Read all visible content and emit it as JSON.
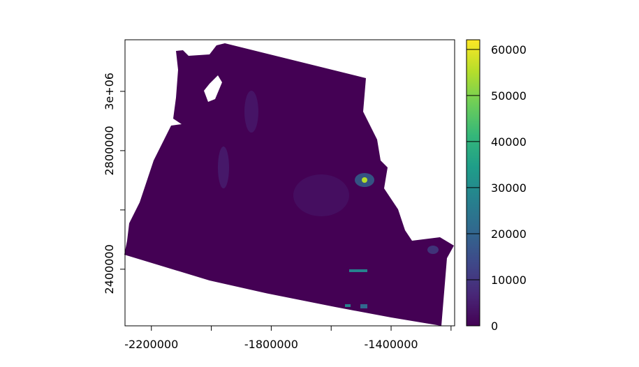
{
  "chart_data": {
    "type": "raster",
    "xlim": [
      -2288000,
      -1188000
    ],
    "xticks": [
      -2200000,
      {
        "value": -2000000,
        "label": null
      },
      -1800000,
      {
        "value": -1600000,
        "label": null
      },
      -1400000,
      {
        "value": -1200000,
        "label": null
      }
    ],
    "ylim": [
      2209000,
      3174000
    ],
    "yticks": [
      2400000,
      {
        "value": 2600000,
        "label": null
      },
      2800000,
      {
        "value": 3000000,
        "label": "3e+06"
      }
    ],
    "zlim": [
      0,
      62100
    ],
    "zticks": [
      0,
      10000,
      20000,
      30000,
      40000,
      50000,
      60000
    ],
    "colormap": [
      "#440154",
      "#482878",
      "#3e4989",
      "#31688e",
      "#26828e",
      "#1f9e89",
      "#35b779",
      "#6ece58",
      "#b5de2b",
      "#fde725"
    ]
  }
}
